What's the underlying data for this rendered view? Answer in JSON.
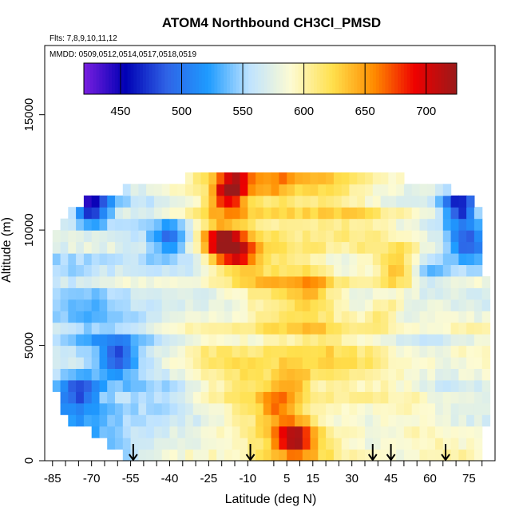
{
  "chart_data": {
    "type": "heatmap",
    "title": "ATOM4 Northbound CH3Cl_PMSD",
    "subtitle_flights": "Flts: 7,8,9,10,11,12",
    "subtitle_dates": "MMDD: 0509,0512,0514,0517,0518,0519",
    "xlabel": "Latitude (deg N)",
    "ylabel": "Altitude (m)",
    "xlim": [
      -88,
      85
    ],
    "ylim": [
      0,
      18000
    ],
    "x_ticks": [
      -85,
      -70,
      -55,
      -40,
      -25,
      -10,
      5,
      15,
      30,
      45,
      60,
      75
    ],
    "x_minor_ticks": [
      -80,
      -75,
      -65,
      -60,
      -50,
      -45,
      -35,
      -30,
      -20,
      -15,
      0,
      10,
      20,
      25,
      35,
      40,
      50,
      55,
      65,
      70,
      80
    ],
    "y_ticks": [
      0,
      5000,
      10000,
      15000
    ],
    "colorbar": {
      "range": [
        420,
        725
      ],
      "ticks": [
        450,
        500,
        550,
        600,
        650,
        700
      ],
      "colors": [
        "#7a1fe0",
        "#0000b4",
        "#2f63e6",
        "#1e9bff",
        "#bfe3ff",
        "#fdfbd2",
        "#ffe04d",
        "#ff8c00",
        "#ee0000",
        "#9a1a1a"
      ]
    },
    "profile_markers_lat": [
      -54,
      -9,
      38,
      45,
      66
    ],
    "grid_lat_step": 3,
    "grid_alt_step": 500,
    "altitude_envelope": {
      "alt": [
        0,
        1000,
        2000,
        4000,
        7000,
        10000,
        11500,
        12500
      ],
      "lat_min": [
        -55,
        -67,
        -82,
        -85,
        -86,
        -86,
        -70,
        -20
      ],
      "lat_max": [
        80,
        80,
        82,
        82,
        82,
        80,
        78,
        42
      ]
    },
    "highlights": [
      {
        "lat": -17,
        "alt": 11500,
        "value": 690
      },
      {
        "lat": -15,
        "alt": 12200,
        "value": 670
      },
      {
        "lat": -20,
        "alt": 9500,
        "value": 715
      },
      {
        "lat": -14,
        "alt": 9000,
        "value": 680
      },
      {
        "lat": 8,
        "alt": 1000,
        "value": 690
      },
      {
        "lat": 0,
        "alt": 12000,
        "value": 630
      },
      {
        "lat": 15,
        "alt": 7500,
        "value": 625
      },
      {
        "lat": 42,
        "alt": 6500,
        "value": 630
      },
      {
        "lat": 47,
        "alt": 8500,
        "value": 640
      },
      {
        "lat": 2,
        "alt": 2500,
        "value": 640
      },
      {
        "lat": 8,
        "alt": 3500,
        "value": 625
      },
      {
        "lat": -60,
        "alt": 4500,
        "value": 510
      },
      {
        "lat": -75,
        "alt": 3000,
        "value": 520
      },
      {
        "lat": -70,
        "alt": 11000,
        "value": 460
      },
      {
        "lat": 72,
        "alt": 11000,
        "value": 470
      },
      {
        "lat": 75,
        "alt": 9500,
        "value": 500
      },
      {
        "lat": -40,
        "alt": 9700,
        "value": 520
      },
      {
        "lat": 60,
        "alt": 8000,
        "value": 540
      }
    ]
  }
}
